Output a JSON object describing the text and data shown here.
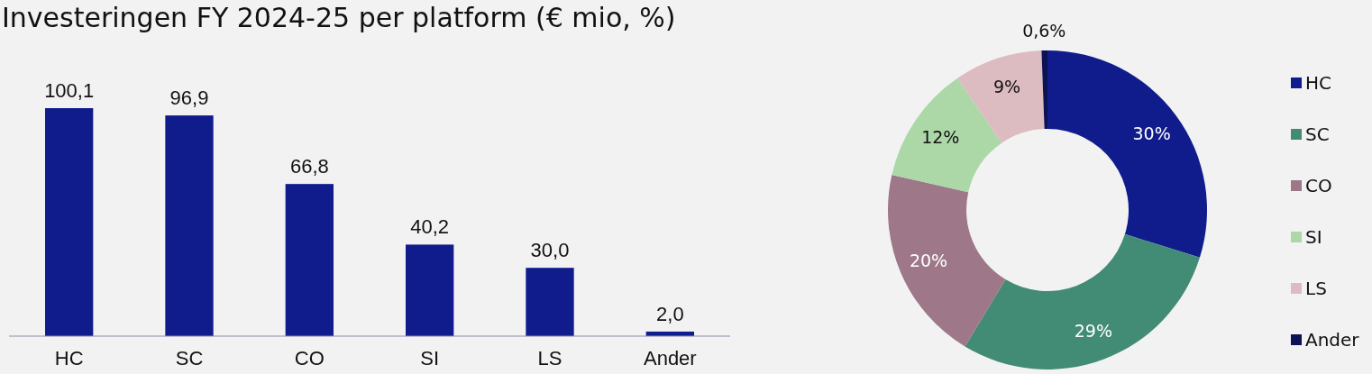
{
  "chart_data": [
    {
      "type": "bar",
      "title": "Investeringen FY 2024-25 per platform (€ mio, %)",
      "categories": [
        "HC",
        "SC",
        "CO",
        "SI",
        "LS",
        "Ander"
      ],
      "values": [
        100.1,
        96.9,
        66.8,
        40.2,
        30.0,
        2.0
      ],
      "value_labels": [
        "100,1",
        "96,9",
        "66,8",
        "40,2",
        "30,0",
        "2,0"
      ],
      "color": "#111c8c"
    },
    {
      "type": "donut",
      "categories": [
        "HC",
        "SC",
        "CO",
        "SI",
        "LS",
        "Ander"
      ],
      "values": [
        30,
        29,
        20,
        12,
        9,
        0.6
      ],
      "value_labels": [
        "30%",
        "29%",
        "20%",
        "12%",
        "9%",
        "0,6%"
      ],
      "colors": [
        "#101c8c",
        "#428b74",
        "#9e7888",
        "#acd8a8",
        "#dcbcc0",
        "#0c1254"
      ],
      "legend": "right"
    }
  ]
}
